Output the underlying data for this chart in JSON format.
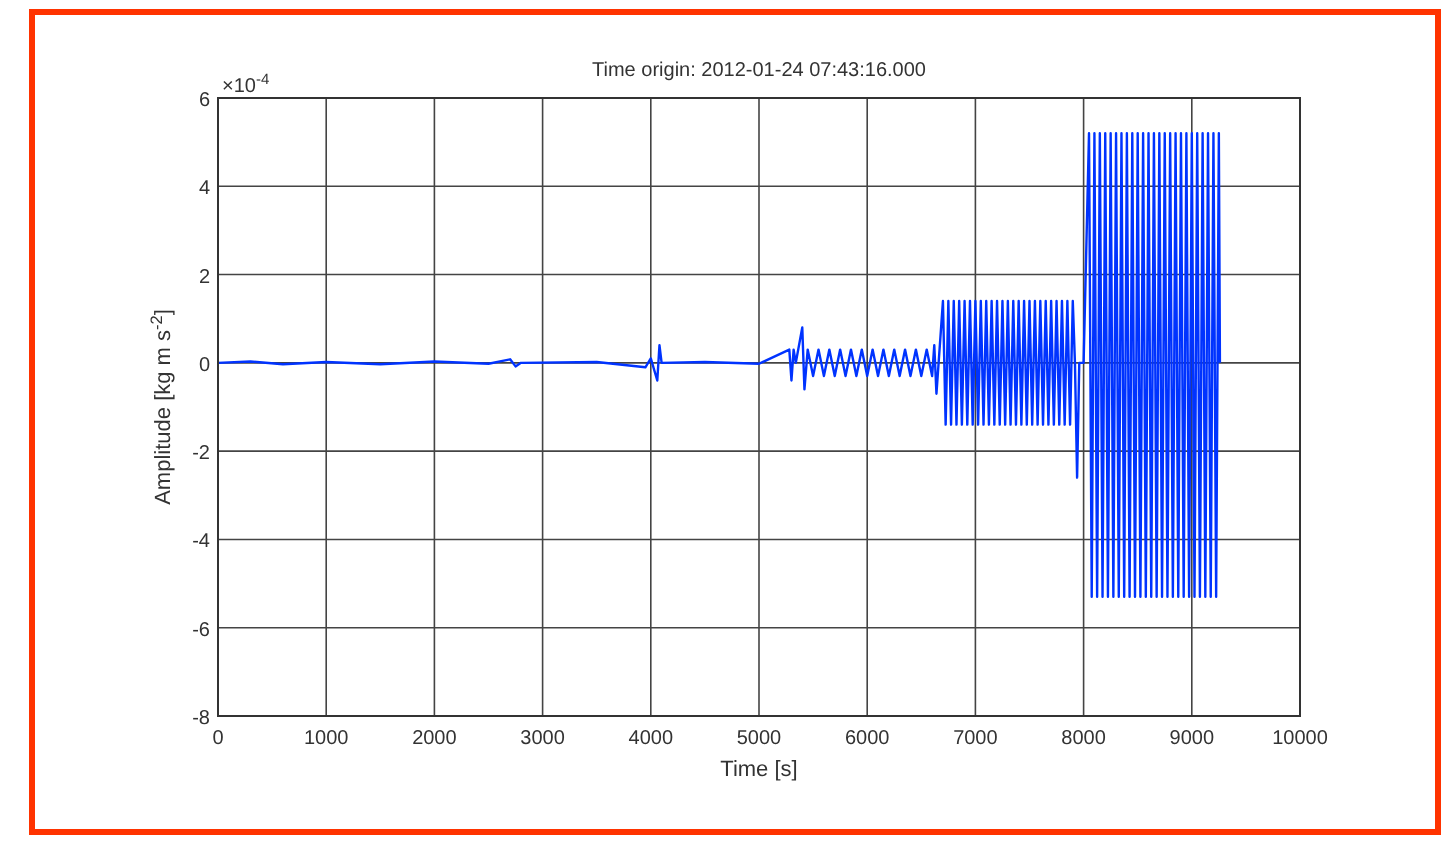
{
  "chart_data": {
    "type": "line",
    "title": "Time origin: 2012-01-24 07:43:16.000",
    "xlabel": "Time [s]",
    "ylabel": "Amplitude [kg m s$^{-2}$]",
    "annotations": [
      "×10$^{-4}$"
    ],
    "xlim": [
      0,
      10000
    ],
    "xticks": [
      0,
      1000,
      2000,
      3000,
      4000,
      5000,
      6000,
      7000,
      8000,
      9000,
      10000
    ],
    "ylim": [
      -8,
      6
    ],
    "yticks": [
      -8,
      -6,
      -4,
      -2,
      0,
      2,
      4,
      6
    ],
    "grid": true,
    "line_style": "solid",
    "series": [
      {
        "color": "#0033ff",
        "x": [
          0,
          300,
          600,
          1000,
          1500,
          2000,
          2500,
          2700,
          2750,
          2800,
          3500,
          3950,
          4000,
          4060,
          4080,
          4100,
          4500,
          5000,
          5280,
          5300,
          5320,
          5340,
          5400,
          5420,
          5450,
          5500,
          5550,
          5600,
          5650,
          5700,
          5750,
          5800,
          5850,
          5900,
          5950,
          6000,
          6050,
          6100,
          6150,
          6200,
          6250,
          6300,
          6350,
          6400,
          6450,
          6500,
          6550,
          6600,
          6620,
          6640,
          6660,
          6700,
          6725,
          6750,
          6775,
          6800,
          6825,
          6850,
          6875,
          6900,
          6925,
          6950,
          6975,
          7000,
          7025,
          7050,
          7075,
          7100,
          7125,
          7150,
          7175,
          7200,
          7225,
          7250,
          7275,
          7300,
          7325,
          7350,
          7375,
          7400,
          7425,
          7450,
          7475,
          7500,
          7525,
          7550,
          7575,
          7600,
          7625,
          7650,
          7675,
          7700,
          7725,
          7750,
          7775,
          7800,
          7825,
          7850,
          7875,
          7900,
          7920,
          7940,
          7960,
          8000,
          8050,
          8075,
          8100,
          8125,
          8150,
          8175,
          8200,
          8225,
          8250,
          8275,
          8300,
          8325,
          8350,
          8375,
          8400,
          8425,
          8450,
          8475,
          8500,
          8525,
          8550,
          8575,
          8600,
          8625,
          8650,
          8675,
          8700,
          8725,
          8750,
          8775,
          8800,
          8825,
          8850,
          8875,
          8900,
          8925,
          8950,
          8975,
          9000,
          9025,
          9050,
          9075,
          9100,
          9125,
          9150,
          9175,
          9200,
          9225,
          9250,
          9260
        ],
        "values": [
          0,
          0.03,
          -0.03,
          0.02,
          -0.03,
          0.03,
          -0.02,
          0.08,
          -0.08,
          0,
          0.02,
          -0.1,
          0.1,
          -0.4,
          0.4,
          0,
          0.02,
          -0.02,
          0.3,
          -0.4,
          0.3,
          0,
          0.8,
          -0.6,
          0.3,
          -0.3,
          0.3,
          -0.3,
          0.3,
          -0.3,
          0.3,
          -0.3,
          0.3,
          -0.3,
          0.3,
          -0.3,
          0.3,
          -0.3,
          0.3,
          -0.3,
          0.3,
          -0.3,
          0.3,
          -0.3,
          0.3,
          -0.3,
          0.3,
          -0.3,
          0.4,
          -0.7,
          0,
          1.4,
          -1.4,
          1.4,
          -1.4,
          1.4,
          -1.4,
          1.4,
          -1.4,
          1.4,
          -1.4,
          1.4,
          -1.4,
          1.4,
          -1.4,
          1.4,
          -1.4,
          1.4,
          -1.4,
          1.4,
          -1.4,
          1.4,
          -1.4,
          1.4,
          -1.4,
          1.4,
          -1.4,
          1.4,
          -1.4,
          1.4,
          -1.4,
          1.4,
          -1.4,
          1.4,
          -1.4,
          1.4,
          -1.4,
          1.4,
          -1.4,
          1.4,
          -1.4,
          1.4,
          -1.4,
          1.4,
          -1.4,
          1.4,
          -1.4,
          1.4,
          -1.4,
          1.4,
          0,
          -2.6,
          0,
          0,
          5.2,
          -5.3,
          5.2,
          -5.3,
          5.2,
          -5.3,
          5.2,
          -5.3,
          5.2,
          -5.3,
          5.2,
          -5.3,
          5.2,
          -5.3,
          5.2,
          -5.3,
          5.2,
          -5.3,
          5.2,
          -5.3,
          5.2,
          -5.3,
          5.2,
          -5.3,
          5.2,
          -5.3,
          5.2,
          -5.3,
          5.2,
          -5.3,
          5.2,
          -5.3,
          5.2,
          -5.3,
          5.2,
          -5.3,
          5.2,
          -5.3,
          5.2,
          -5.3,
          5.2,
          -5.3,
          5.2,
          -5.3,
          5.2,
          -5.3,
          5.2,
          -5.3,
          5.2,
          0
        ]
      }
    ]
  }
}
